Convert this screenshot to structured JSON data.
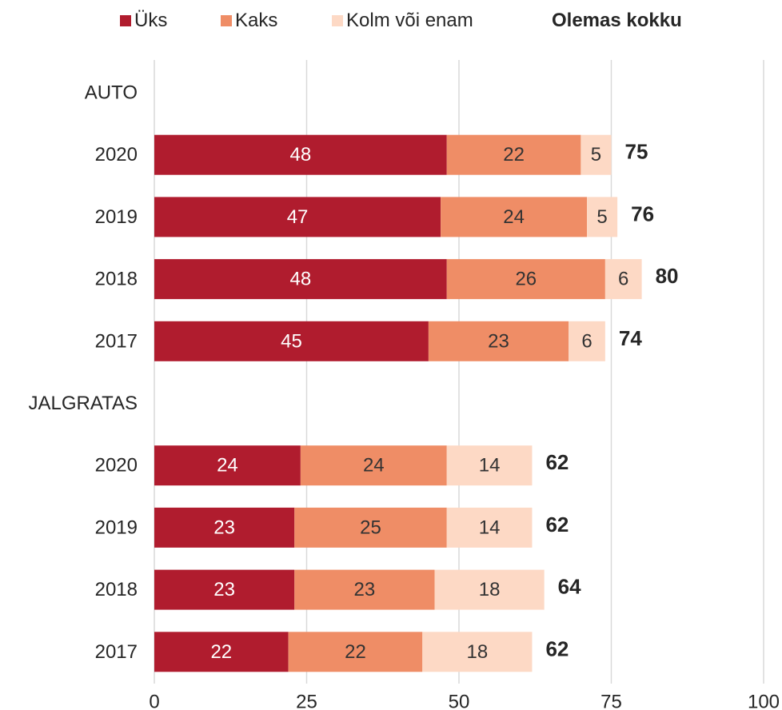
{
  "legend": {
    "one": "Üks",
    "two": "Kaks",
    "three": "Kolm või enam",
    "total": "Olemas kokku"
  },
  "colors": {
    "one": "#b01c2e",
    "two": "#ef8d66",
    "three": "#fdd9c5",
    "grid": "#d9d9d9",
    "text": "#262626",
    "label_light": "#ffffff",
    "label_dark": "#333333"
  },
  "chart_data": {
    "type": "bar",
    "orientation": "horizontal",
    "stacked": true,
    "xlim": [
      0,
      100
    ],
    "xticks": [
      "0",
      "25",
      "50",
      "75",
      "100"
    ],
    "grid": true,
    "legend_position": "top",
    "groups": [
      {
        "label": "AUTO",
        "rows": [
          {
            "year": "2020",
            "one": 48,
            "two": 22,
            "three": 5,
            "total": 75
          },
          {
            "year": "2019",
            "one": 47,
            "two": 24,
            "three": 5,
            "total": 76
          },
          {
            "year": "2018",
            "one": 48,
            "two": 26,
            "three": 6,
            "total": 80
          },
          {
            "year": "2017",
            "one": 45,
            "two": 23,
            "three": 6,
            "total": 74
          }
        ]
      },
      {
        "label": "JALGRATAS",
        "rows": [
          {
            "year": "2020",
            "one": 24,
            "two": 24,
            "three": 14,
            "total": 62
          },
          {
            "year": "2019",
            "one": 23,
            "two": 25,
            "three": 14,
            "total": 62
          },
          {
            "year": "2018",
            "one": 23,
            "two": 23,
            "three": 18,
            "total": 64
          },
          {
            "year": "2017",
            "one": 22,
            "two": 22,
            "three": 18,
            "total": 62
          }
        ]
      }
    ]
  }
}
